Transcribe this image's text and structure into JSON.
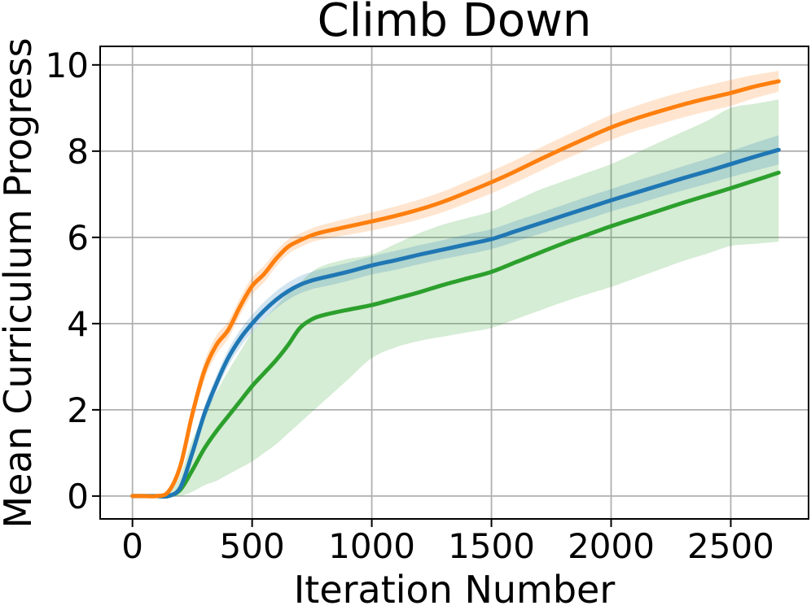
{
  "figure": {
    "title": "Climb Down",
    "xlabel": "Iteration Number",
    "ylabel": "Mean Curriculum Progress"
  },
  "chart_data": {
    "type": "line",
    "title": "Climb Down",
    "xlabel": "Iteration Number",
    "ylabel": "Mean Curriculum Progress",
    "grid": true,
    "legend": "none",
    "background": "#ffffff",
    "grid_color": "#b0b0b0",
    "spine_color": "#000000",
    "band_alpha": 0.2,
    "xlim": [
      -135,
      2825
    ],
    "ylim": [
      -0.53,
      10.43
    ],
    "xticks": [
      0,
      500,
      1000,
      1500,
      2000,
      2500
    ],
    "yticks": [
      0,
      2,
      4,
      6,
      8,
      10
    ],
    "x": [
      0,
      50,
      100,
      150,
      200,
      250,
      300,
      350,
      400,
      450,
      500,
      550,
      600,
      650,
      700,
      750,
      800,
      900,
      1000,
      1100,
      1200,
      1300,
      1400,
      1500,
      1600,
      1700,
      1800,
      1900,
      2000,
      2100,
      2200,
      2300,
      2400,
      2500,
      2600,
      2700
    ],
    "series": [
      {
        "name": "green",
        "color": "#2ca02c",
        "values": [
          0,
          0,
          0,
          0,
          0.15,
          0.6,
          1.1,
          1.5,
          1.85,
          2.2,
          2.55,
          2.85,
          3.15,
          3.5,
          3.9,
          4.1,
          4.2,
          4.32,
          4.43,
          4.58,
          4.73,
          4.9,
          5.05,
          5.2,
          5.42,
          5.64,
          5.86,
          6.06,
          6.26,
          6.44,
          6.62,
          6.8,
          6.97,
          7.14,
          7.32,
          7.5
        ],
        "band_low": [
          0,
          0,
          0,
          0,
          0,
          0.1,
          0.25,
          0.35,
          0.5,
          0.65,
          0.8,
          1.0,
          1.2,
          1.45,
          1.7,
          1.95,
          2.2,
          2.7,
          3.2,
          3.45,
          3.6,
          3.7,
          3.8,
          3.9,
          4.1,
          4.3,
          4.5,
          4.68,
          4.85,
          5.05,
          5.25,
          5.45,
          5.62,
          5.8,
          5.85,
          5.9
        ],
        "band_high": [
          0,
          0,
          0,
          0.05,
          0.5,
          1.3,
          1.9,
          2.4,
          2.9,
          3.35,
          3.8,
          4.1,
          4.4,
          4.7,
          4.95,
          5.2,
          5.35,
          5.5,
          5.6,
          5.85,
          6.1,
          6.3,
          6.45,
          6.6,
          6.85,
          7.1,
          7.3,
          7.5,
          7.7,
          7.95,
          8.2,
          8.45,
          8.7,
          9.0,
          9.1,
          9.2
        ]
      },
      {
        "name": "blue",
        "color": "#1f77b4",
        "values": [
          0,
          0,
          0,
          0,
          0.2,
          1.0,
          1.9,
          2.6,
          3.2,
          3.65,
          4.0,
          4.3,
          4.55,
          4.75,
          4.9,
          5.0,
          5.07,
          5.2,
          5.35,
          5.47,
          5.6,
          5.72,
          5.84,
          5.96,
          6.14,
          6.32,
          6.5,
          6.68,
          6.86,
          7.03,
          7.2,
          7.37,
          7.53,
          7.7,
          7.87,
          8.03
        ],
        "band_low": [
          0,
          0,
          0,
          0,
          0.12,
          0.86,
          1.73,
          2.42,
          3.01,
          3.45,
          3.8,
          4.1,
          4.35,
          4.55,
          4.7,
          4.8,
          4.86,
          4.99,
          5.14,
          5.25,
          5.38,
          5.5,
          5.61,
          5.73,
          5.9,
          6.08,
          6.25,
          6.42,
          6.6,
          6.76,
          6.93,
          7.09,
          7.24,
          7.4,
          7.55,
          7.69
        ],
        "band_high": [
          0,
          0,
          0,
          0,
          0.28,
          1.14,
          2.07,
          2.78,
          3.39,
          3.85,
          4.2,
          4.5,
          4.75,
          4.95,
          5.1,
          5.2,
          5.28,
          5.41,
          5.56,
          5.69,
          5.82,
          5.94,
          6.07,
          6.19,
          6.38,
          6.56,
          6.75,
          6.94,
          7.12,
          7.3,
          7.47,
          7.65,
          7.82,
          8.0,
          8.19,
          8.37
        ]
      },
      {
        "name": "orange",
        "color": "#ff7f0e",
        "values": [
          0,
          0,
          0,
          0.1,
          0.7,
          1.9,
          2.9,
          3.5,
          3.85,
          4.4,
          4.87,
          5.15,
          5.5,
          5.78,
          5.93,
          6.05,
          6.13,
          6.25,
          6.37,
          6.5,
          6.65,
          6.83,
          7.05,
          7.28,
          7.53,
          7.8,
          8.06,
          8.31,
          8.55,
          8.75,
          8.92,
          9.08,
          9.22,
          9.35,
          9.5,
          9.62
        ],
        "band_low": [
          0,
          0,
          0,
          0.05,
          0.55,
          1.7,
          2.68,
          3.28,
          3.65,
          4.2,
          4.67,
          4.96,
          5.32,
          5.61,
          5.77,
          5.89,
          5.96,
          6.06,
          6.16,
          6.28,
          6.42,
          6.59,
          6.8,
          7.02,
          7.27,
          7.53,
          7.79,
          8.03,
          8.26,
          8.46,
          8.62,
          8.78,
          8.92,
          9.05,
          9.23,
          9.38
        ],
        "band_high": [
          0,
          0,
          0,
          0.15,
          0.85,
          2.1,
          3.12,
          3.72,
          4.05,
          4.6,
          5.07,
          5.34,
          5.68,
          5.95,
          6.09,
          6.21,
          6.3,
          6.44,
          6.58,
          6.72,
          6.88,
          7.07,
          7.3,
          7.54,
          7.79,
          8.07,
          8.33,
          8.59,
          8.84,
          9.04,
          9.22,
          9.38,
          9.52,
          9.65,
          9.77,
          9.86
        ]
      }
    ]
  }
}
